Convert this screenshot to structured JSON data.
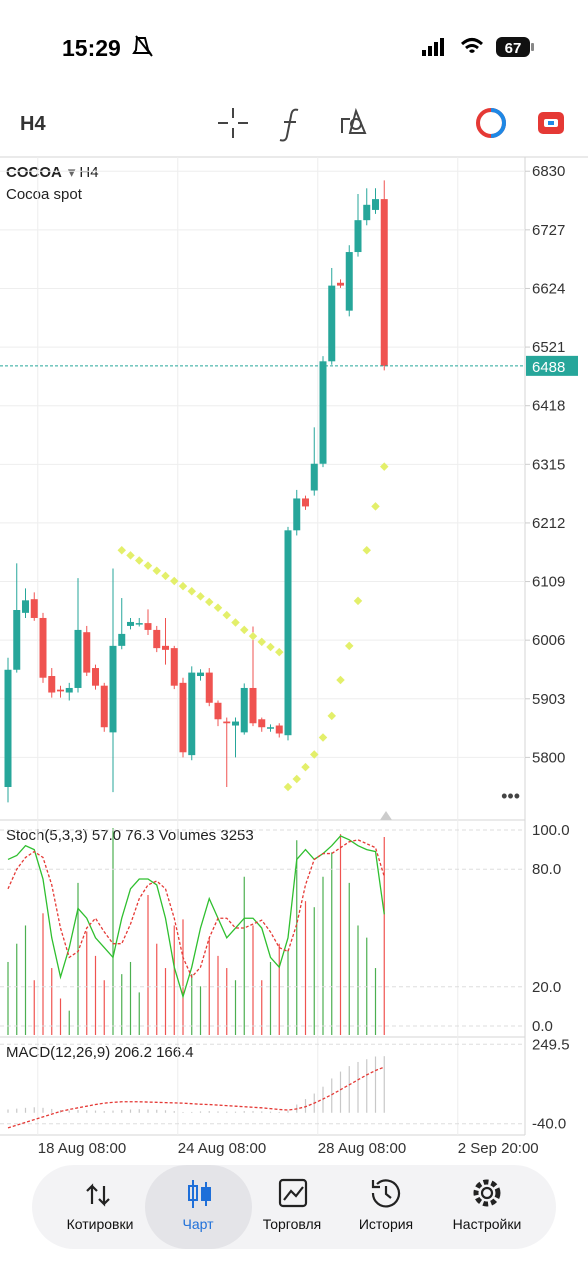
{
  "status_bar": {
    "time": "15:29",
    "battery": 67
  },
  "toolbar": {
    "timeframe": "H4"
  },
  "chart_data": [
    {
      "type": "candlestick",
      "title": "COCOA",
      "timeframe": "H4",
      "subtitle": "Cocoa spot",
      "up_color": "#26a69a",
      "down_color": "#ef5350",
      "sar_color": "#e3ef6a",
      "open": [
        5748,
        5954,
        6054,
        6078,
        6045,
        5943,
        5919,
        5914,
        5922,
        6020,
        5957,
        5926,
        5844,
        5996,
        6031,
        6036,
        6036,
        6024,
        5996,
        5992,
        5931,
        5804,
        5943,
        5949,
        5896,
        5863,
        5856,
        5844,
        5922,
        5867,
        5853,
        5856,
        5839,
        6199,
        6255,
        6269,
        6316,
        6496,
        6634,
        6585,
        6688,
        6744,
        6762,
        6781
      ],
      "high": [
        5975,
        6141,
        6097,
        6090,
        6054,
        5957,
        5926,
        5931,
        6115,
        6031,
        5963,
        5931,
        6132,
        6080,
        6045,
        6045,
        6060,
        6031,
        6045,
        5996,
        5940,
        5960,
        5955,
        5957,
        5900,
        5870,
        5870,
        5930,
        6030,
        5870,
        5858,
        5860,
        6205,
        6270,
        6260,
        6380,
        6505,
        6660,
        6640,
        6700,
        6790,
        6800,
        6800,
        6814
      ],
      "low": [
        5721,
        5949,
        6045,
        6040,
        5931,
        5905,
        5905,
        5900,
        5914,
        5943,
        5919,
        5845,
        5739,
        5990,
        6025,
        6030,
        6015,
        5985,
        5963,
        5920,
        5800,
        5795,
        5935,
        5890,
        5855,
        5748,
        5800,
        5840,
        5855,
        5845,
        5845,
        5835,
        5830,
        6190,
        6235,
        6260,
        6310,
        6490,
        6625,
        6575,
        6680,
        6735,
        6755,
        6480
      ],
      "close": [
        5954,
        6059,
        6076,
        6045,
        5940,
        5914,
        5916,
        5922,
        6024,
        5949,
        5926,
        5853,
        5996,
        6017,
        6038,
        6036,
        6024,
        5992,
        5989,
        5926,
        5809,
        5949,
        5949,
        5896,
        5867,
        5860,
        5863,
        5922,
        5860,
        5853,
        5853,
        5842,
        6199,
        6255,
        6241,
        6316,
        6496,
        6629,
        6629,
        6688,
        6744,
        6771,
        6781,
        6488
      ],
      "sar": [
        null,
        null,
        null,
        null,
        null,
        null,
        null,
        null,
        null,
        null,
        null,
        null,
        null,
        6164,
        6155,
        6146,
        6137,
        6128,
        6119,
        6110,
        6101,
        6092,
        6083,
        6073,
        6063,
        6050,
        6037,
        6024,
        6013,
        6003,
        5994,
        5985,
        5748,
        5762,
        5783,
        5805,
        5835,
        5873,
        5936,
        5996,
        6075,
        6164,
        6241,
        6311
      ],
      "last_price": 6488,
      "ylim": [
        5690,
        6855
      ],
      "yticks": [
        5800,
        5903,
        6006,
        6109,
        6212,
        6315,
        6418,
        6521,
        6624,
        6727,
        6830
      ],
      "xticks": [
        {
          "value": 3.4,
          "label": "18 Aug 08:00"
        },
        {
          "value": 19.4,
          "label": "24 Aug 08:00"
        },
        {
          "value": 35.4,
          "label": "28 Aug 08:00"
        },
        {
          "value": 51.4,
          "label": "2 Sep 20:00"
        }
      ],
      "grid": true
    },
    {
      "type": "stochastic",
      "title": "Stoch(5,3,3)",
      "series": [
        {
          "color": "#2fbf2f",
          "readout": "57.0",
          "values": [
            85,
            87,
            92,
            90,
            75,
            45,
            25,
            40,
            60,
            55,
            45,
            40,
            35,
            55,
            70,
            75,
            75,
            72,
            55,
            30,
            15,
            30,
            50,
            65,
            55,
            45,
            50,
            55,
            55,
            50,
            35,
            30,
            45,
            85,
            90,
            85,
            88,
            92,
            97,
            95,
            92,
            90,
            89,
            57
          ]
        },
        {
          "color": "#e53935",
          "readout": "76.3",
          "values": [
            70,
            80,
            86,
            89,
            86,
            72,
            50,
            35,
            38,
            50,
            55,
            48,
            42,
            42,
            52,
            65,
            72,
            74,
            70,
            55,
            35,
            25,
            30,
            45,
            55,
            55,
            50,
            50,
            52,
            54,
            48,
            40,
            38,
            52,
            72,
            85,
            88,
            88,
            91,
            94,
            95,
            93,
            91,
            76.3
          ]
        }
      ],
      "volumes": {
        "name": "Volumes",
        "color": "#4caf50",
        "ylim": [
          0,
          3500
        ],
        "values": [
          1200,
          1500,
          1800,
          900,
          2000,
          1100,
          600,
          400,
          2500,
          1700,
          1300,
          900,
          3400,
          1000,
          1200,
          700,
          2300,
          1500,
          1100,
          1800,
          1900,
          1000,
          800,
          1600,
          1300,
          1100,
          900,
          2600,
          1800,
          900,
          1200,
          1500,
          1400,
          3200,
          2200,
          2100,
          2600,
          3000,
          3300,
          2500,
          1800,
          1600,
          1100,
          3253
        ]
      },
      "ylim": [
        -4.6,
        104.1
      ],
      "yticks": [
        {
          "value": 0,
          "label": "0.0"
        },
        {
          "value": 20,
          "label": "20.0"
        },
        {
          "value": 80,
          "label": "80.0"
        },
        {
          "value": 100,
          "label": "100.0"
        }
      ]
    },
    {
      "type": "macd",
      "title": "MACD(12,26,9)",
      "histogram": {
        "color": "#c8c8c8",
        "values": [
          12,
          15,
          18,
          20,
          18,
          14,
          10,
          8,
          10,
          9,
          8,
          6,
          8,
          10,
          12,
          13,
          12,
          11,
          9,
          6,
          3,
          3,
          5,
          6,
          5,
          4,
          4,
          6,
          6,
          5,
          4,
          3,
          8,
          30,
          50,
          70,
          95,
          125,
          150,
          170,
          185,
          195,
          205,
          206.2
        ]
      },
      "signal": {
        "color": "#e53935",
        "values": [
          -55,
          -45,
          -35,
          -25,
          -15,
          -5,
          5,
          12,
          18,
          24,
          30,
          35,
          38,
          40,
          40,
          40,
          39,
          38,
          37,
          36,
          35,
          33,
          31,
          30,
          28,
          26,
          24,
          22,
          20,
          18,
          15,
          12,
          10,
          14,
          22,
          35,
          50,
          66,
          84,
          102,
          120,
          138,
          154,
          166.4
        ]
      },
      "ylim": [
        -81,
        276
      ],
      "yticks": [
        {
          "value": -40,
          "label": "-40.0"
        },
        249.5
      ]
    }
  ],
  "nav": {
    "items": [
      "Котировки",
      "Чарт",
      "Торговля",
      "История",
      "Настройки"
    ],
    "selected": 1
  }
}
